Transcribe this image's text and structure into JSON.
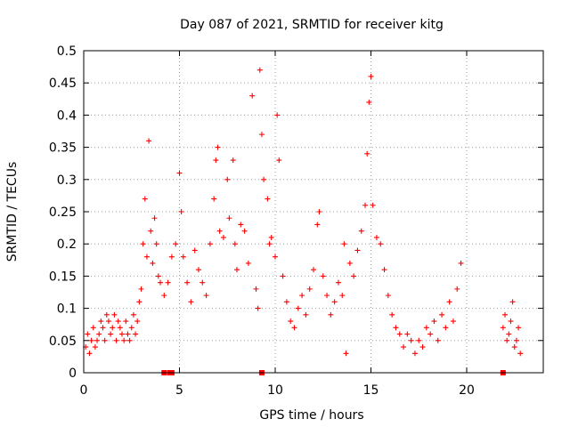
{
  "chart_data": {
    "type": "scatter",
    "title": "Day 087 of 2021, SRMTID for receiver kitg",
    "xlabel": "GPS time / hours",
    "ylabel": "SRMTID / TECUs",
    "xlim": [
      0,
      24
    ],
    "ylim": [
      0,
      0.5
    ],
    "xticks": [
      0,
      5,
      10,
      15,
      20
    ],
    "yticks": [
      0,
      0.05,
      0.1,
      0.15,
      0.2,
      0.25,
      0.3,
      0.35,
      0.4,
      0.45,
      0.5
    ],
    "xtick_labels": [
      "0",
      "5",
      "10",
      "15",
      "20"
    ],
    "ytick_labels": [
      "0",
      "0.05",
      "0.1",
      "0.15",
      "0.2",
      "0.25",
      "0.3",
      "0.35",
      "0.4",
      "0.45",
      "0.5"
    ],
    "grid": true,
    "marker": "+",
    "series": [
      {
        "name": "SRMTID",
        "color": "#ff0000",
        "points": [
          [
            0.1,
            0.04
          ],
          [
            0.2,
            0.06
          ],
          [
            0.3,
            0.03
          ],
          [
            0.4,
            0.05
          ],
          [
            0.5,
            0.07
          ],
          [
            0.6,
            0.04
          ],
          [
            0.7,
            0.05
          ],
          [
            0.8,
            0.06
          ],
          [
            0.9,
            0.08
          ],
          [
            1.0,
            0.07
          ],
          [
            1.1,
            0.05
          ],
          [
            1.2,
            0.09
          ],
          [
            1.3,
            0.08
          ],
          [
            1.4,
            0.06
          ],
          [
            1.5,
            0.07
          ],
          [
            1.6,
            0.09
          ],
          [
            1.7,
            0.05
          ],
          [
            1.8,
            0.08
          ],
          [
            1.9,
            0.07
          ],
          [
            2.0,
            0.06
          ],
          [
            2.1,
            0.05
          ],
          [
            2.2,
            0.08
          ],
          [
            2.3,
            0.06
          ],
          [
            2.4,
            0.05
          ],
          [
            2.5,
            0.07
          ],
          [
            2.6,
            0.09
          ],
          [
            2.7,
            0.06
          ],
          [
            2.8,
            0.08
          ],
          [
            2.9,
            0.11
          ],
          [
            3.0,
            0.13
          ],
          [
            3.1,
            0.2
          ],
          [
            3.2,
            0.27
          ],
          [
            3.3,
            0.18
          ],
          [
            3.4,
            0.36
          ],
          [
            3.5,
            0.22
          ],
          [
            3.6,
            0.17
          ],
          [
            3.7,
            0.24
          ],
          [
            3.8,
            0.2
          ],
          [
            3.9,
            0.15
          ],
          [
            4.0,
            0.14
          ],
          [
            4.2,
            0.12
          ],
          [
            4.4,
            0.14
          ],
          [
            4.6,
            0.18
          ],
          [
            4.8,
            0.2
          ],
          [
            5.0,
            0.31
          ],
          [
            5.1,
            0.25
          ],
          [
            5.2,
            0.18
          ],
          [
            5.4,
            0.14
          ],
          [
            5.6,
            0.11
          ],
          [
            5.8,
            0.19
          ],
          [
            6.0,
            0.16
          ],
          [
            6.2,
            0.14
          ],
          [
            6.4,
            0.12
          ],
          [
            6.6,
            0.2
          ],
          [
            6.8,
            0.27
          ],
          [
            6.9,
            0.33
          ],
          [
            7.0,
            0.35
          ],
          [
            7.1,
            0.22
          ],
          [
            7.3,
            0.21
          ],
          [
            7.5,
            0.3
          ],
          [
            7.6,
            0.24
          ],
          [
            7.8,
            0.33
          ],
          [
            7.9,
            0.2
          ],
          [
            8.0,
            0.16
          ],
          [
            8.2,
            0.23
          ],
          [
            8.4,
            0.22
          ],
          [
            8.6,
            0.17
          ],
          [
            8.8,
            0.43
          ],
          [
            9.0,
            0.13
          ],
          [
            9.1,
            0.1
          ],
          [
            9.2,
            0.47
          ],
          [
            9.3,
            0.37
          ],
          [
            9.4,
            0.3
          ],
          [
            9.6,
            0.27
          ],
          [
            9.7,
            0.2
          ],
          [
            9.8,
            0.21
          ],
          [
            10.0,
            0.18
          ],
          [
            10.1,
            0.4
          ],
          [
            10.2,
            0.33
          ],
          [
            10.4,
            0.15
          ],
          [
            10.6,
            0.11
          ],
          [
            10.8,
            0.08
          ],
          [
            11.0,
            0.07
          ],
          [
            11.2,
            0.1
          ],
          [
            11.4,
            0.12
          ],
          [
            11.6,
            0.09
          ],
          [
            11.8,
            0.13
          ],
          [
            12.0,
            0.16
          ],
          [
            12.2,
            0.23
          ],
          [
            12.3,
            0.25
          ],
          [
            12.5,
            0.15
          ],
          [
            12.7,
            0.12
          ],
          [
            12.9,
            0.09
          ],
          [
            13.1,
            0.11
          ],
          [
            13.3,
            0.14
          ],
          [
            13.5,
            0.12
          ],
          [
            13.6,
            0.2
          ],
          [
            13.7,
            0.03
          ],
          [
            13.9,
            0.17
          ],
          [
            14.1,
            0.15
          ],
          [
            14.3,
            0.19
          ],
          [
            14.5,
            0.22
          ],
          [
            14.7,
            0.26
          ],
          [
            14.8,
            0.34
          ],
          [
            14.9,
            0.42
          ],
          [
            15.0,
            0.46
          ],
          [
            15.1,
            0.26
          ],
          [
            15.3,
            0.21
          ],
          [
            15.5,
            0.2
          ],
          [
            15.7,
            0.16
          ],
          [
            15.9,
            0.12
          ],
          [
            16.1,
            0.09
          ],
          [
            16.3,
            0.07
          ],
          [
            16.5,
            0.06
          ],
          [
            16.7,
            0.04
          ],
          [
            16.9,
            0.06
          ],
          [
            17.1,
            0.05
          ],
          [
            17.3,
            0.03
          ],
          [
            17.5,
            0.05
          ],
          [
            17.7,
            0.04
          ],
          [
            17.9,
            0.07
          ],
          [
            18.1,
            0.06
          ],
          [
            18.3,
            0.08
          ],
          [
            18.5,
            0.05
          ],
          [
            18.7,
            0.09
          ],
          [
            18.9,
            0.07
          ],
          [
            19.1,
            0.11
          ],
          [
            19.3,
            0.08
          ],
          [
            19.5,
            0.13
          ],
          [
            19.7,
            0.17
          ],
          [
            21.9,
            0.07
          ],
          [
            22.0,
            0.09
          ],
          [
            22.1,
            0.05
          ],
          [
            22.2,
            0.06
          ],
          [
            22.3,
            0.08
          ],
          [
            22.4,
            0.11
          ],
          [
            22.5,
            0.04
          ],
          [
            22.6,
            0.05
          ],
          [
            22.7,
            0.07
          ],
          [
            22.8,
            0.03
          ]
        ]
      }
    ],
    "zero_points_x": [
      4.2,
      4.5,
      4.6,
      9.3,
      21.9
    ]
  }
}
